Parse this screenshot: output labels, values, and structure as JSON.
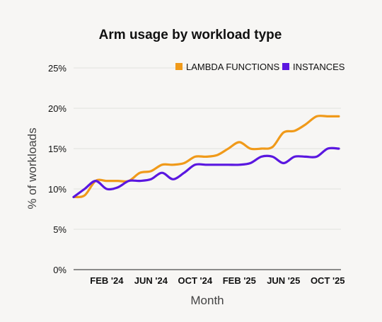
{
  "chart_data": {
    "type": "line",
    "title": "Arm usage by workload type",
    "xlabel": "Month",
    "ylabel": "% of workloads",
    "ylim": [
      0,
      25
    ],
    "y_ticks": [
      "0%",
      "5%",
      "10%",
      "15%",
      "20%",
      "25%"
    ],
    "y_tick_values": [
      0,
      5,
      10,
      15,
      20,
      25
    ],
    "x_ticks": [
      "FEB '24",
      "JUN '24",
      "OCT '24",
      "FEB '25",
      "JUN '25",
      "OCT '25"
    ],
    "x_tick_positions": [
      3,
      7,
      11,
      15,
      19,
      23
    ],
    "x": [
      0,
      1,
      2,
      3,
      4,
      5,
      6,
      7,
      8,
      9,
      10,
      11,
      12,
      13,
      14,
      15,
      16,
      17,
      18,
      19,
      20,
      21,
      22,
      23,
      24
    ],
    "xlim": [
      0,
      24.2
    ],
    "grid": true,
    "legend_position": "top-right",
    "series": [
      {
        "name": "LAMBDA FUNCTIONS",
        "color": "#f09a1a",
        "values": [
          9.0,
          9.2,
          11.0,
          11.0,
          11.0,
          11.0,
          12.0,
          12.2,
          13.0,
          13.0,
          13.2,
          14.0,
          14.0,
          14.2,
          15.0,
          15.8,
          15.0,
          15.0,
          15.2,
          17.0,
          17.2,
          18.0,
          19.0,
          19.0,
          19.0
        ]
      },
      {
        "name": "INSTANCES",
        "color": "#5a17e0",
        "values": [
          9.0,
          10.0,
          11.0,
          10.0,
          10.2,
          11.0,
          11.0,
          11.2,
          12.0,
          11.2,
          12.0,
          13.0,
          13.0,
          13.0,
          13.0,
          13.0,
          13.2,
          14.0,
          14.0,
          13.2,
          14.0,
          14.0,
          14.0,
          15.0,
          15.0
        ]
      }
    ]
  }
}
